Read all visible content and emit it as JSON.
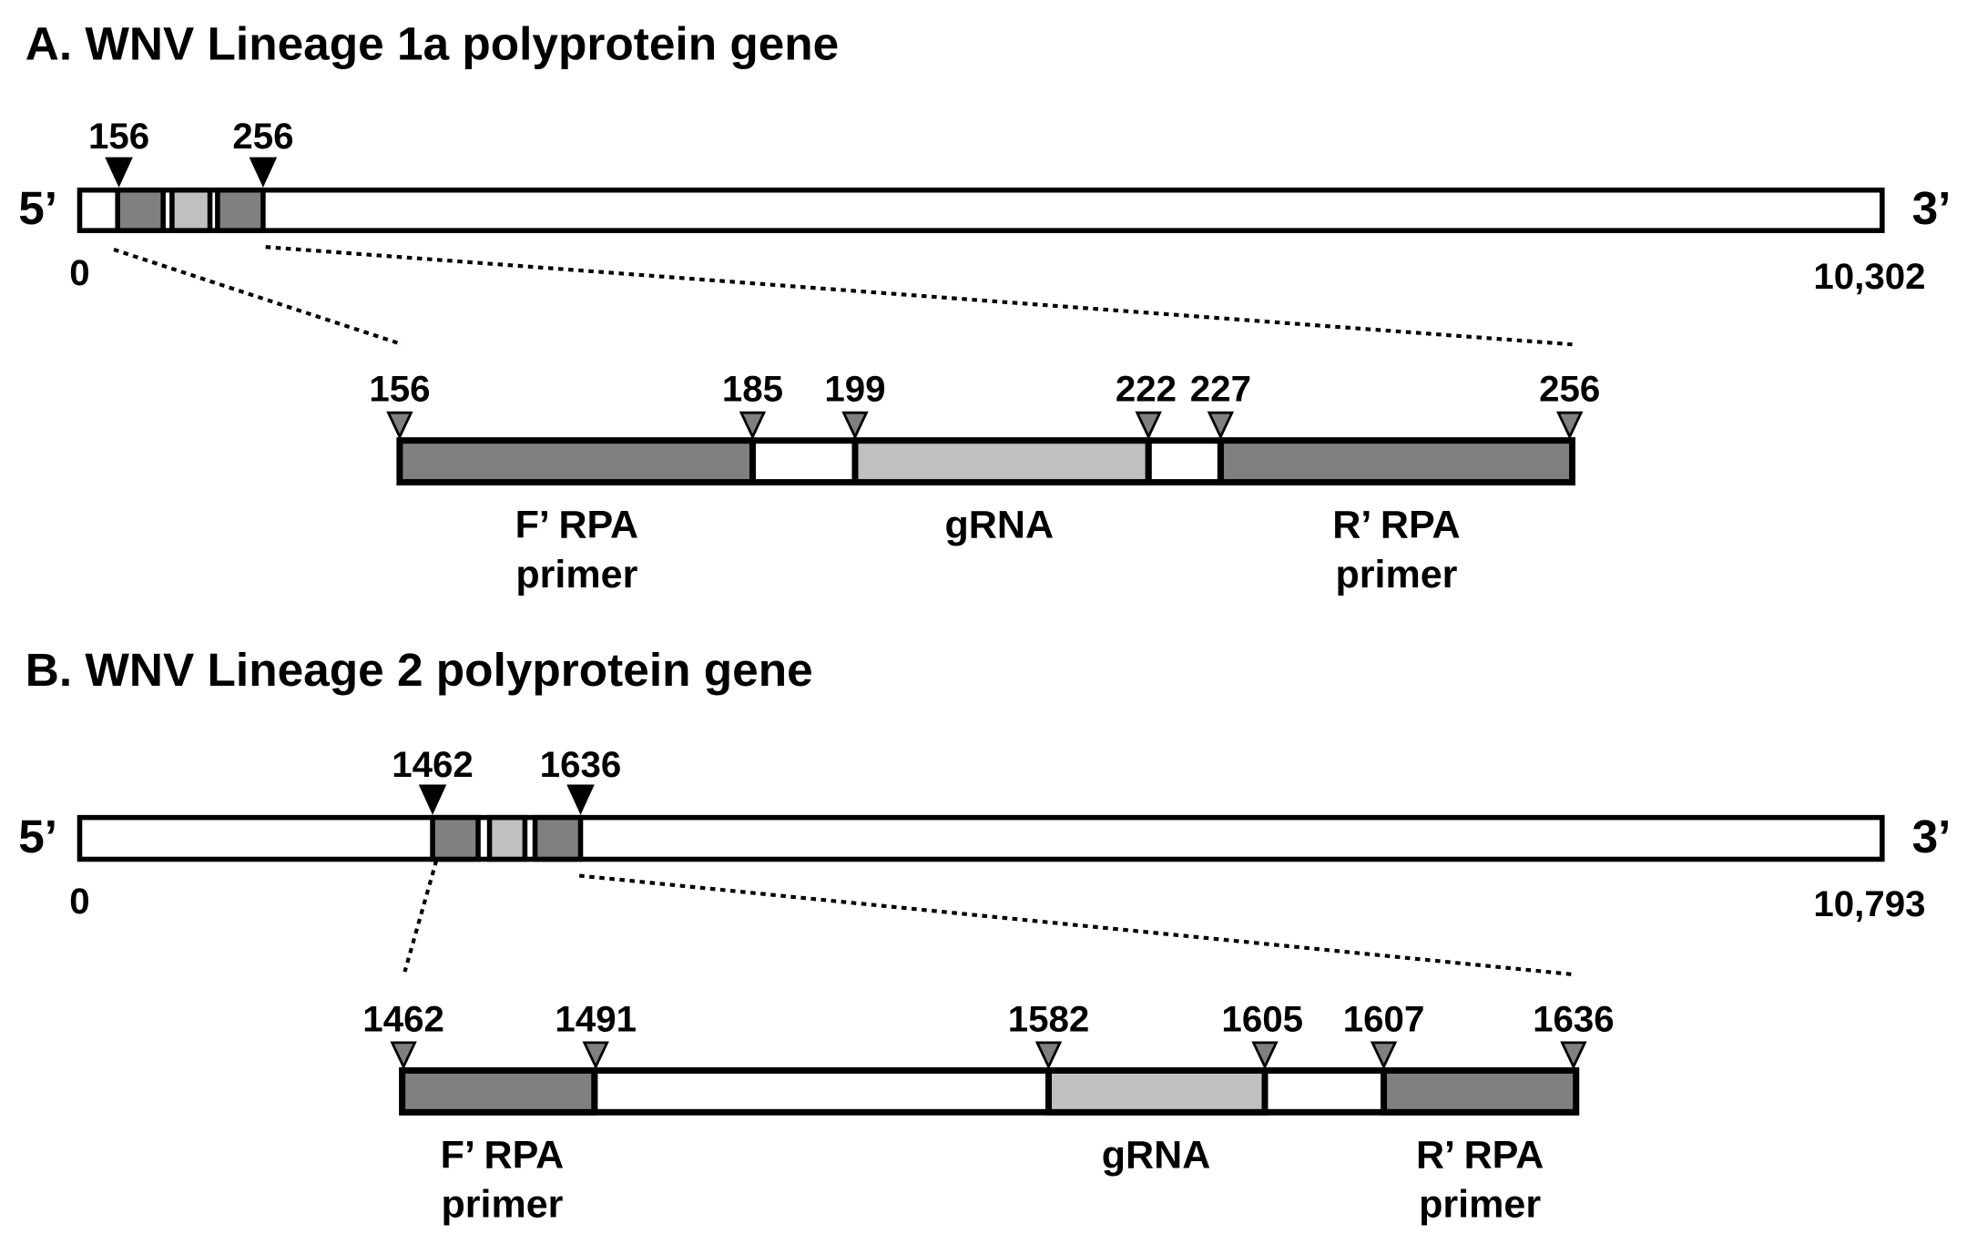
{
  "panels": [
    {
      "title": "A. WNV Lineage 1a polyprotein gene",
      "five_prime": "5’",
      "three_prime": "3’",
      "start": "0",
      "end": "10,302",
      "markers": [
        "156",
        "256"
      ],
      "zoom_markers": [
        "156",
        "185",
        "199",
        "222",
        "227",
        "256"
      ],
      "segment_labels": [
        [
          "F’ RPA",
          "primer"
        ],
        [
          "gRNA"
        ],
        [
          "R’ RPA",
          "primer"
        ]
      ]
    },
    {
      "title": "B. WNV Lineage 2 polyprotein gene",
      "five_prime": "5’",
      "three_prime": "3’",
      "start": "0",
      "end": "10,793",
      "markers": [
        "1462",
        "1636"
      ],
      "zoom_markers": [
        "1462",
        "1491",
        "1582",
        "1605",
        "1607",
        "1636"
      ],
      "segment_labels": [
        [
          "F’ RPA",
          "primer"
        ],
        [
          "gRNA"
        ],
        [
          "R’ RPA",
          "primer"
        ]
      ]
    }
  ]
}
